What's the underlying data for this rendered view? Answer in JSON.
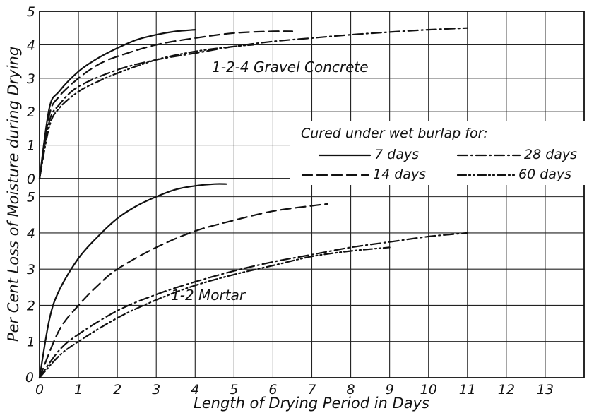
{
  "chart_data": {
    "type": "line",
    "xlabel": "Length of Drying Period in Days",
    "ylabel": "Per Cent Loss of Moisture during Drying",
    "x_ticks": [
      "0",
      "1",
      "2",
      "3",
      "4",
      "5",
      "6",
      "7",
      "8",
      "9",
      "10",
      "11",
      "12",
      "13"
    ],
    "y_ticks_upper": [
      "0",
      "1",
      "2",
      "3",
      "4",
      "5"
    ],
    "y_ticks_lower": [
      "0",
      "1",
      "2",
      "3",
      "4",
      "5"
    ],
    "xlim": [
      0,
      14
    ],
    "grid": true,
    "legend": {
      "title": "Cured under wet burlap for:",
      "placement": "upper-right",
      "entries": [
        "7 days",
        "14 days",
        "28 days",
        "60 days"
      ]
    },
    "panels": [
      {
        "label": "1-2-4 Gravel Concrete",
        "ylim": [
          0,
          5
        ],
        "series": [
          {
            "name": "7 days",
            "style": "solid",
            "x": [
              0,
              0.25,
              0.5,
              1,
              1.5,
              2,
              2.5,
              3,
              3.5,
              4
            ],
            "y": [
              0,
              2.1,
              2.6,
              3.2,
              3.6,
              3.9,
              4.15,
              4.3,
              4.4,
              4.45
            ]
          },
          {
            "name": "14 days",
            "style": "dash",
            "x": [
              0,
              0.25,
              0.5,
              1,
              1.5,
              2,
              3,
              4,
              5,
              6,
              6.5
            ],
            "y": [
              0,
              1.9,
              2.45,
              3.0,
              3.4,
              3.65,
              4.0,
              4.2,
              4.35,
              4.4,
              4.4
            ]
          },
          {
            "name": "28 days",
            "style": "dashdot",
            "x": [
              0,
              0.25,
              0.5,
              1,
              2,
              3,
              4,
              5,
              6,
              7,
              8,
              9,
              10,
              11
            ],
            "y": [
              0,
              1.7,
              2.2,
              2.75,
              3.25,
              3.55,
              3.75,
              3.95,
              4.1,
              4.2,
              4.3,
              4.38,
              4.45,
              4.5
            ]
          },
          {
            "name": "60 days",
            "style": "dashdotdot",
            "x": [
              0,
              0.25,
              0.5,
              1,
              1.5,
              2,
              3,
              4,
              5,
              5.5
            ],
            "y": [
              0,
              1.55,
              2.1,
              2.6,
              2.9,
              3.15,
              3.55,
              3.8,
              3.95,
              4.0
            ]
          }
        ]
      },
      {
        "label": "1-2 Mortar",
        "ylim": [
          0,
          5.5
        ],
        "series": [
          {
            "name": "7 days",
            "style": "solid",
            "x": [
              0,
              0.25,
              0.5,
              1,
              1.5,
              2,
              2.5,
              3,
              3.5,
              4,
              4.5,
              4.8
            ],
            "y": [
              0,
              1.6,
              2.4,
              3.3,
              3.9,
              4.4,
              4.75,
              5.0,
              5.2,
              5.3,
              5.35,
              5.35
            ]
          },
          {
            "name": "14 days",
            "style": "dash",
            "x": [
              0,
              0.5,
              1,
              1.5,
              2,
              3,
              4,
              5,
              6,
              7,
              7.4
            ],
            "y": [
              0,
              1.3,
              2.0,
              2.55,
              3.0,
              3.6,
              4.05,
              4.35,
              4.6,
              4.75,
              4.8
            ]
          },
          {
            "name": "28 days",
            "style": "dashdot",
            "x": [
              0,
              0.5,
              1,
              2,
              3,
              4,
              5,
              6,
              7,
              8,
              9,
              10,
              11
            ],
            "y": [
              0,
              0.75,
              1.2,
              1.85,
              2.3,
              2.65,
              2.95,
              3.2,
              3.4,
              3.6,
              3.75,
              3.9,
              4.0
            ]
          },
          {
            "name": "60 days",
            "style": "dashdotdot",
            "x": [
              0,
              0.5,
              1,
              2,
              3,
              4,
              5,
              6,
              7,
              8,
              9
            ],
            "y": [
              0,
              0.6,
              1.0,
              1.65,
              2.15,
              2.55,
              2.85,
              3.1,
              3.35,
              3.5,
              3.6
            ]
          }
        ]
      }
    ]
  }
}
